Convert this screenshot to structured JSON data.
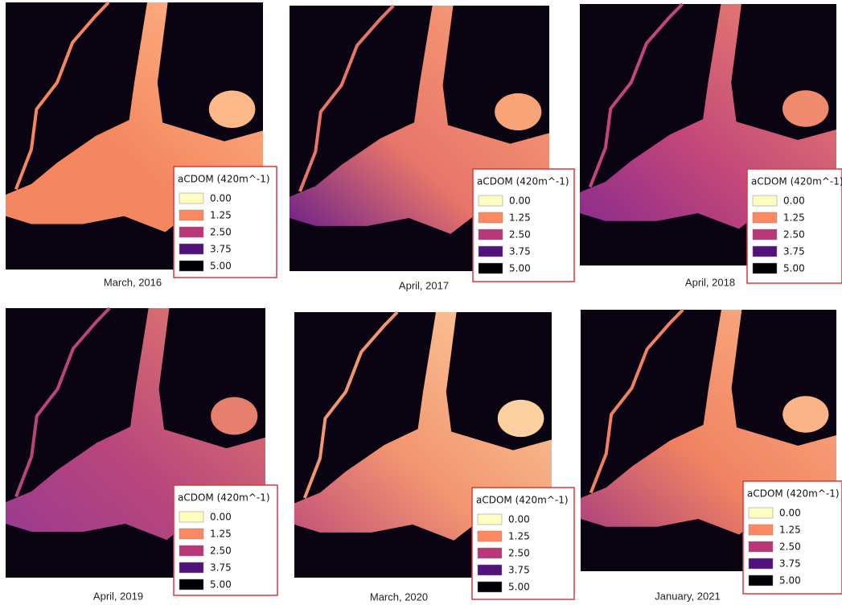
{
  "panels": [
    {
      "caption": "March, 2016",
      "legend": {
        "title": "aCDOM (420m^-1)",
        "entries": [
          {
            "label": "0.00",
            "color": "#fcfdbf"
          },
          {
            "label": "1.25",
            "color": "#fc8961"
          },
          {
            "label": "2.50",
            "color": "#b73779"
          },
          {
            "label": "3.75",
            "color": "#51127c"
          },
          {
            "label": "5.00",
            "color": "#000004"
          }
        ]
      }
    },
    {
      "caption": "April, 2017",
      "legend": {
        "title": "aCDOM (420m^-1)",
        "entries": [
          {
            "label": "0.00",
            "color": "#fcfdbf"
          },
          {
            "label": "1.25",
            "color": "#fc8961"
          },
          {
            "label": "2.50",
            "color": "#b73779"
          },
          {
            "label": "3.75",
            "color": "#51127c"
          },
          {
            "label": "5.00",
            "color": "#000004"
          }
        ]
      }
    },
    {
      "caption": "April, 2018",
      "legend": {
        "title": "aCDOM (420m^-1)",
        "entries": [
          {
            "label": "0.00",
            "color": "#fcfdbf"
          },
          {
            "label": "1.25",
            "color": "#fc8961"
          },
          {
            "label": "2.50",
            "color": "#b73779"
          },
          {
            "label": "3.75",
            "color": "#51127c"
          },
          {
            "label": "5.00",
            "color": "#000004"
          }
        ]
      }
    },
    {
      "caption": "April, 2019",
      "legend": {
        "title": "aCDOM (420m^-1)",
        "entries": [
          {
            "label": "0.00",
            "color": "#fcfdbf"
          },
          {
            "label": "1.25",
            "color": "#fc8961"
          },
          {
            "label": "2.50",
            "color": "#b73779"
          },
          {
            "label": "3.75",
            "color": "#51127c"
          },
          {
            "label": "5.00",
            "color": "#000004"
          }
        ]
      }
    },
    {
      "caption": "March, 2020",
      "legend": {
        "title": "aCDOM (420m^-1)",
        "entries": [
          {
            "label": "0.00",
            "color": "#fcfdbf"
          },
          {
            "label": "1.25",
            "color": "#fc8961"
          },
          {
            "label": "2.50",
            "color": "#b73779"
          },
          {
            "label": "3.75",
            "color": "#51127c"
          },
          {
            "label": "5.00",
            "color": "#000004"
          }
        ]
      }
    },
    {
      "caption": "January, 2021",
      "legend": {
        "title": "aCDOM (420m^-1)",
        "entries": [
          {
            "label": "0.00",
            "color": "#fcfdbf"
          },
          {
            "label": "1.25",
            "color": "#fc8961"
          },
          {
            "label": "2.50",
            "color": "#b73779"
          },
          {
            "label": "3.75",
            "color": "#51127c"
          },
          {
            "label": "5.00",
            "color": "#000004"
          }
        ]
      }
    }
  ]
}
